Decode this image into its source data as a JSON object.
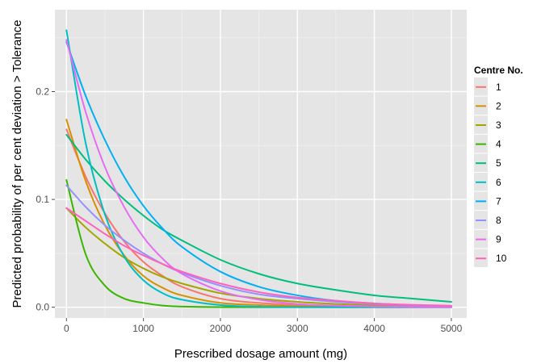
{
  "chart_data": {
    "type": "line",
    "xlabel": "Prescribed dosage amount (mg)",
    "ylabel": "Predicted probability of per cent deviation > Tolerance",
    "xlim": [
      -150,
      5200
    ],
    "ylim": [
      -0.01,
      0.276
    ],
    "x_ticks": [
      0,
      1000,
      2000,
      3000,
      4000,
      5000
    ],
    "x_tick_labels": [
      "0",
      "1000",
      "2000",
      "3000",
      "4000",
      "5000"
    ],
    "y_ticks": [
      0.0,
      0.1,
      0.2
    ],
    "y_tick_labels": [
      "0.0",
      "0.1",
      "0.2"
    ],
    "grid": true,
    "legend": {
      "title": "Centre No.",
      "position": "right"
    },
    "x": [
      0,
      250,
      500,
      750,
      1000,
      1250,
      1500,
      2000,
      2500,
      3000,
      3500,
      4000,
      4500,
      5000
    ],
    "series": [
      {
        "name": "1",
        "color": "#F8766D",
        "values": [
          0.165,
          0.121,
          0.087,
          0.061,
          0.042,
          0.029,
          0.019,
          0.008,
          0.004,
          0.002,
          0.001,
          0.0005,
          0.0003,
          0.0002
        ]
      },
      {
        "name": "2",
        "color": "#D89000",
        "values": [
          0.174,
          0.117,
          0.076,
          0.048,
          0.029,
          0.018,
          0.011,
          0.004,
          0.002,
          0.001,
          0.0005,
          0.0002,
          0.0001,
          0.0001
        ]
      },
      {
        "name": "3",
        "color": "#A3A500",
        "values": [
          0.092,
          0.074,
          0.059,
          0.046,
          0.036,
          0.028,
          0.022,
          0.013,
          0.008,
          0.005,
          0.003,
          0.0018,
          0.0011,
          0.0007
        ]
      },
      {
        "name": "4",
        "color": "#39B600",
        "values": [
          0.118,
          0.049,
          0.02,
          0.008,
          0.004,
          0.0015,
          0.0006,
          0.0001,
          0.0,
          0.0,
          0.0,
          0.0,
          0.0,
          0.0
        ]
      },
      {
        "name": "5",
        "color": "#00BF7D",
        "values": [
          0.16,
          0.137,
          0.117,
          0.1,
          0.085,
          0.072,
          0.062,
          0.044,
          0.031,
          0.022,
          0.016,
          0.011,
          0.008,
          0.005
        ]
      },
      {
        "name": "6",
        "color": "#00BFC4",
        "values": [
          0.257,
          0.152,
          0.086,
          0.047,
          0.025,
          0.013,
          0.007,
          0.002,
          0.0005,
          0.0001,
          0.0,
          0.0,
          0.0,
          0.0
        ]
      },
      {
        "name": "7",
        "color": "#00B0F6",
        "values": [
          0.246,
          0.196,
          0.155,
          0.121,
          0.094,
          0.073,
          0.056,
          0.033,
          0.019,
          0.011,
          0.006,
          0.0035,
          0.002,
          0.0011
        ]
      },
      {
        "name": "8",
        "color": "#9590FF",
        "values": [
          0.113,
          0.093,
          0.076,
          0.062,
          0.05,
          0.04,
          0.032,
          0.02,
          0.012,
          0.008,
          0.005,
          0.003,
          0.0018,
          0.0011
        ]
      },
      {
        "name": "9",
        "color": "#E76BF3",
        "values": [
          0.248,
          0.181,
          0.13,
          0.093,
          0.065,
          0.045,
          0.031,
          0.015,
          0.007,
          0.003,
          0.0015,
          0.0007,
          0.0003,
          0.0002
        ]
      },
      {
        "name": "10",
        "color": "#FF62BC",
        "values": [
          0.092,
          0.08,
          0.068,
          0.057,
          0.048,
          0.04,
          0.033,
          0.022,
          0.014,
          0.009,
          0.006,
          0.0035,
          0.0022,
          0.0014
        ]
      }
    ]
  }
}
